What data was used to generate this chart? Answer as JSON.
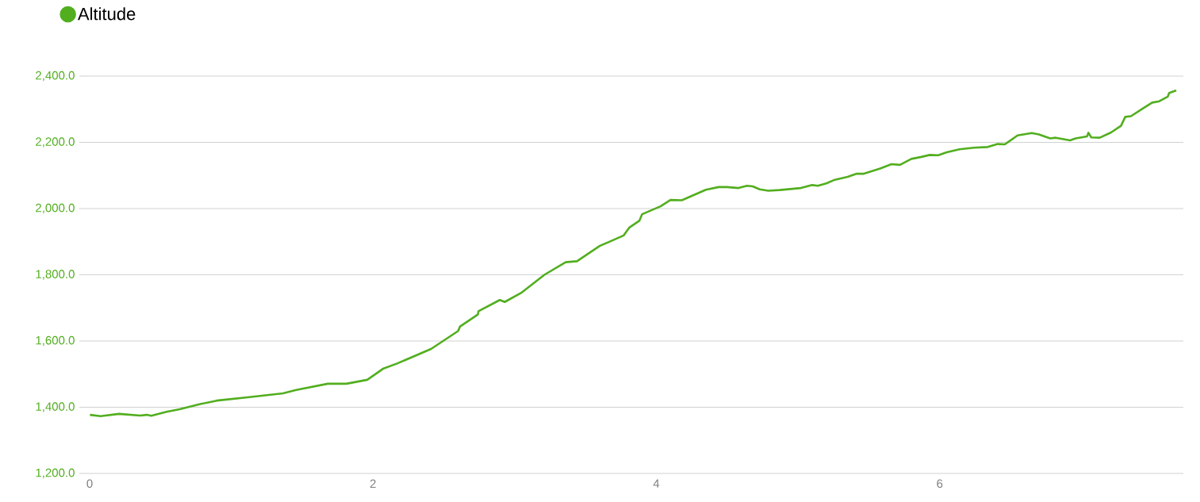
{
  "chart_data": {
    "type": "line",
    "x": [
      0.002,
      0.077,
      0.207,
      0.356,
      0.403,
      0.435,
      0.543,
      0.636,
      0.786,
      0.897,
      1.14,
      1.364,
      1.457,
      1.681,
      1.812,
      1.96,
      2.07,
      2.17,
      2.41,
      2.6,
      2.615,
      2.74,
      2.745,
      2.895,
      2.93,
      3.045,
      3.21,
      3.36,
      3.44,
      3.6,
      3.77,
      3.81,
      3.88,
      3.9,
      4.03,
      4.1,
      4.18,
      4.35,
      4.44,
      4.5,
      4.58,
      4.64,
      4.68,
      4.73,
      4.79,
      4.87,
      5.02,
      5.1,
      5.14,
      5.2,
      5.26,
      5.35,
      5.41,
      5.46,
      5.58,
      5.66,
      5.72,
      5.8,
      5.87,
      5.93,
      5.99,
      6.05,
      6.14,
      6.24,
      6.34,
      6.41,
      6.46,
      6.55,
      6.65,
      6.7,
      6.78,
      6.82,
      6.92,
      6.96,
      7.04,
      7.05,
      7.07,
      7.13,
      7.21,
      7.28,
      7.31,
      7.35,
      7.44,
      7.5,
      7.55,
      7.61,
      7.62,
      7.67
    ],
    "series": [
      {
        "name": "Altitude",
        "color": "#52ae1f",
        "values": [
          1377,
          1373,
          1380,
          1375,
          1377,
          1374,
          1386,
          1394,
          1410,
          1420,
          1431,
          1442,
          1452,
          1471,
          1471,
          1483,
          1516,
          1532,
          1576,
          1630,
          1644,
          1680,
          1690,
          1724,
          1718,
          1745,
          1800,
          1838,
          1841,
          1887,
          1919,
          1943,
          1963,
          1983,
          2007,
          2026,
          2025,
          2057,
          2065,
          2065,
          2062,
          2069,
          2067,
          2058,
          2054,
          2056,
          2062,
          2071,
          2069,
          2076,
          2087,
          2096,
          2105,
          2105,
          2121,
          2134,
          2132,
          2150,
          2156,
          2162,
          2161,
          2170,
          2179,
          2184,
          2186,
          2195,
          2194,
          2221,
          2228,
          2224,
          2212,
          2214,
          2206,
          2212,
          2218,
          2229,
          2215,
          2214,
          2230,
          2250,
          2277,
          2279,
          2304,
          2320,
          2324,
          2338,
          2349,
          2357
        ]
      }
    ],
    "xlim": [
      -0.073,
      7.72
    ],
    "xticks": [
      0,
      2,
      4,
      6
    ],
    "ylim": [
      1200,
      2400
    ],
    "yticks": [
      {
        "value": 1200,
        "label": "1,200.0"
      },
      {
        "value": 1400,
        "label": "1,400.0"
      },
      {
        "value": 1600,
        "label": "1,600.0"
      },
      {
        "value": 1800,
        "label": "1,800.0"
      },
      {
        "value": 2000,
        "label": "2,000.0"
      },
      {
        "value": 2200,
        "label": "2,200.0"
      },
      {
        "value": 2400,
        "label": "2,400.0"
      }
    ],
    "grid": "y",
    "legend": "top left",
    "marker": "none",
    "line_style": "solid"
  }
}
